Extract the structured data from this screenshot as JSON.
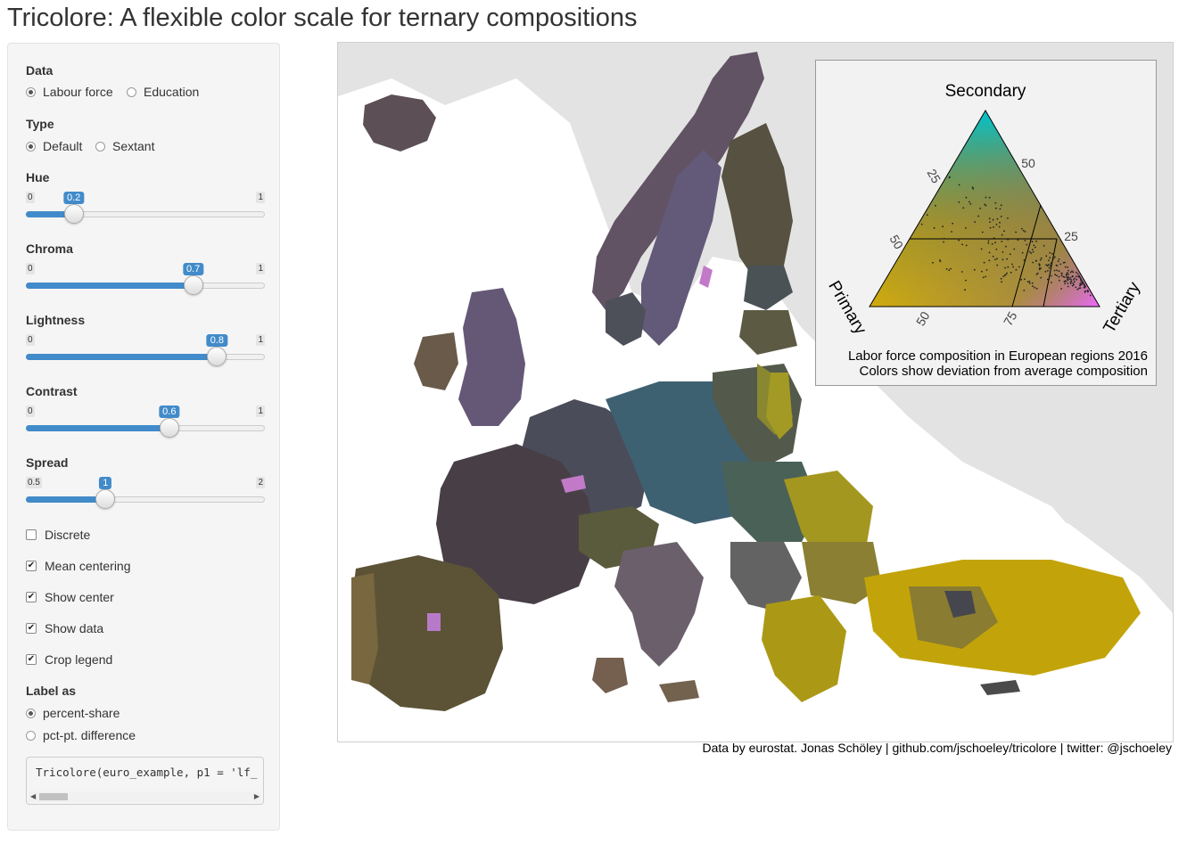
{
  "title": "Tricolore: A flexible color scale for ternary compositions",
  "sidebar": {
    "data": {
      "label": "Data",
      "options": [
        "Labour force",
        "Education"
      ],
      "selected": "Labour force"
    },
    "type": {
      "label": "Type",
      "options": [
        "Default",
        "Sextant"
      ],
      "selected": "Default"
    },
    "hue": {
      "label": "Hue",
      "min": "0",
      "max": "1",
      "value": "0.2",
      "fraction": 0.2
    },
    "chroma": {
      "label": "Chroma",
      "min": "0",
      "max": "1",
      "value": "0.7",
      "fraction": 0.7
    },
    "lightness": {
      "label": "Lightness",
      "min": "0",
      "max": "1",
      "value": "0.8",
      "fraction": 0.8
    },
    "contrast": {
      "label": "Contrast",
      "min": "0",
      "max": "1",
      "value": "0.6",
      "fraction": 0.6
    },
    "spread": {
      "label": "Spread",
      "min": "0.5",
      "max": "2",
      "value": "1",
      "fraction": 0.3333
    },
    "checkboxes": [
      {
        "label": "Discrete",
        "checked": false
      },
      {
        "label": "Mean centering",
        "checked": true
      },
      {
        "label": "Show center",
        "checked": true
      },
      {
        "label": "Show data",
        "checked": true
      },
      {
        "label": "Crop legend",
        "checked": true
      }
    ],
    "label_as": {
      "label": "Label as",
      "options": [
        "percent-share",
        "pct-pt. difference"
      ],
      "selected": "percent-share"
    },
    "code": "Tricolore(euro_example, p1 = 'lf_"
  },
  "legend": {
    "top_label": "Secondary",
    "left_label": "Primary",
    "right_label": "Tertiary",
    "ticks_left": [
      "25",
      "50"
    ],
    "ticks_right": [
      "50",
      "25"
    ],
    "ticks_bottom": [
      "50",
      "75"
    ],
    "caption_line1": "Labor force composition in European regions 2016",
    "caption_line2": "Colors show deviation from average composition"
  },
  "credit": "Data by eurostat. Jonas Schöley | github.com/jschoeley/tricolore | twitter: @jschoeley",
  "colors": {
    "accent": "#428bca",
    "primary_corner": "#d9b400",
    "secondary_corner": "#00c4cc",
    "tertiary_corner": "#f06aff"
  }
}
